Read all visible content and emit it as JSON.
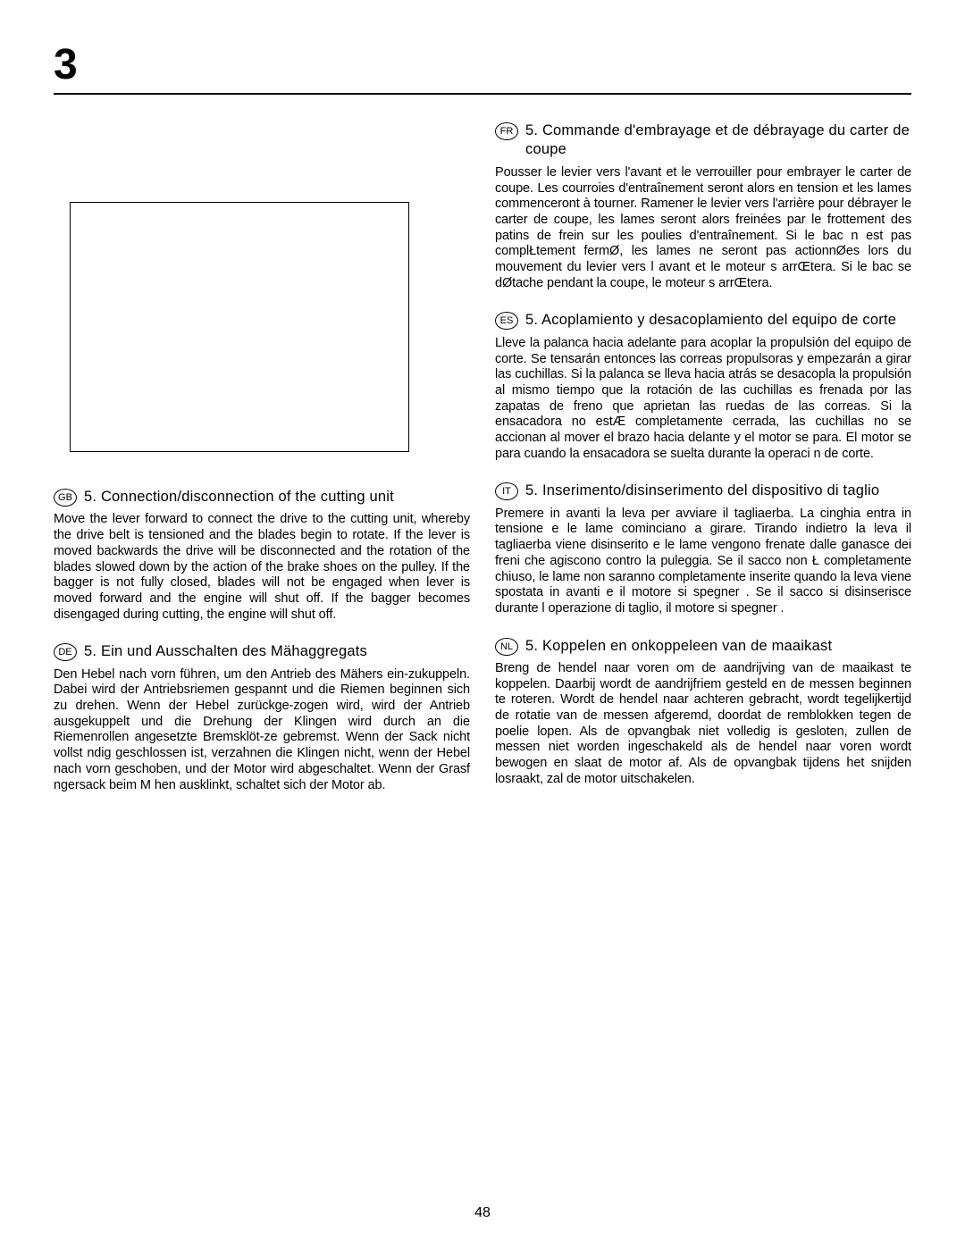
{
  "section_number": "3",
  "page_number": "48",
  "left_entries": [
    {
      "lang": "GB",
      "title": "5. Connection/disconnection of the cutting unit",
      "body": "Move the lever forward to connect the drive to the cutting unit, whereby the drive belt is tensioned and the blades begin to rotate. If the lever is moved backwards the drive will be disconnected and the rotation of the blades slowed down by the action of the brake shoes on the pulley. If the bagger is not fully closed, blades will not be engaged when lever is moved forward and the engine will shut off. If the bagger becomes disengaged during cutting, the engine will shut off."
    },
    {
      "lang": "DE",
      "title": "5. Ein und Ausschalten des Mähaggregats",
      "body": "Den Hebel nach vorn führen, um den Antrieb des Mähers ein-zukuppeln. Dabei wird der Antriebsriemen gespannt und die Riemen beginnen sich zu drehen. Wenn der Hebel zurückge-zogen wird, wird der Antrieb ausgekuppelt und die Drehung der Klingen wird durch an die Riemenrollen angesetzte Bremsklöt-ze gebremst. Wenn der Sack nicht vollst ndig geschlossen ist, verzahnen die Klingen nicht, wenn der Hebel nach vorn geschoben, und der Motor wird abgeschaltet.  Wenn der Grasf ngersack beim M hen ausklinkt, schaltet sich der Motor ab."
    }
  ],
  "right_entries": [
    {
      "lang": "FR",
      "title": "5. Commande d'embrayage et de débrayage du carter de coupe",
      "body": "Pousser le levier vers l'avant et le verrouiller pour embrayer le carter de coupe. Les courroies d'entraînement seront alors en tension et les lames commenceront à tourner. Ramener le levier vers l'arrière pour débrayer le carter de coupe, les lames seront alors freinées par le frottement des patins de frein sur les poulies d'entraînement. Si le bac n est pas complŁtement fermØ, les lames ne seront pas actionnØes lors du mouvement du levier vers l avant et le moteur s arrŒtera.  Si le bac se dØtache pendant la coupe, le moteur s arrŒtera."
    },
    {
      "lang": "ES",
      "title": "5. Acoplamiento y desacoplamiento del equipo de corte",
      "body": "Lleve la palanca hacia adelante para acoplar la propulsión del equipo de corte. Se tensarán entonces las correas propulsoras y empezarán a girar las cuchillas. Si la palanca se lleva hacia atrás se desacopla la propulsión al mismo tiempo que la rotación de las cuchillas es frenada por las zapatas de freno que aprietan las ruedas de las correas. Si la ensacadora no estÆ completamente cerrada, las cuchillas no se accionan al mover el brazo hacia delante y el motor se para. El motor se para cuando la ensacadora se suelta durante la operaci n de corte."
    },
    {
      "lang": "IT",
      "title": "5. Inserimento/disinserimento del dispositivo di taglio",
      "body": "Premere in avanti la leva per avviare il tagliaerba. La cinghia entra in tensione e le lame cominciano a girare. Tirando indietro la leva il tagliaerba viene disinserito e le lame vengono frenate dalle ganasce dei freni che agiscono contro la puleggia. Se il sacco non Ł completamente chiuso, le lame non saranno completamente inserite quando la leva viene spostata in avanti e il motore si spegner .  Se il sacco si disinserisce durante l operazione di taglio, il motore si spegner ."
    },
    {
      "lang": "NL",
      "title": "5. Koppelen en onkoppeleen van de maaikast",
      "body": "Breng de hendel naar voren om de aandrijving van de maaikast te koppelen. Daarbij wordt de aandrijfriem gesteld en de messen beginnen te roteren. Wordt de hendel naar achteren gebracht, wordt tegelijkertijd de rotatie van de messen afgeremd, doordat de remblokken tegen de poelie lopen. Als de opvangbak niet volledig is gesloten, zullen de messen niet worden ingeschakeld als de hendel naar voren wordt bewogen en slaat de motor af.  Als de opvangbak tijdens het snijden losraakt, zal de motor uitschakelen."
    }
  ]
}
